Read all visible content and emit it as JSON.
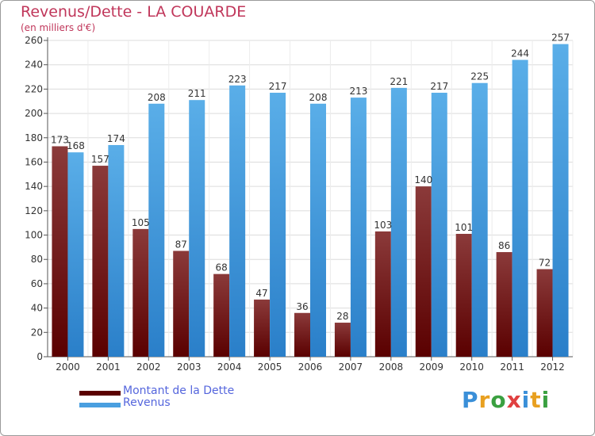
{
  "title": "Revenus/Dette - LA COUARDE",
  "subtitle": "(en milliers d'€)",
  "legend": {
    "dette": "Montant de la Dette",
    "revenus": "Revenus"
  },
  "logo": "Proxiti",
  "colors": {
    "dette_top": "#8b3a3a",
    "dette_bottom": "#5a0000",
    "revenus_top": "#5aaee8",
    "revenus_bottom": "#2a7fc9",
    "title": "#c0365a",
    "legend_text": "#5566dd"
  },
  "chart_data": {
    "type": "bar",
    "title": "Revenus/Dette - LA COUARDE",
    "ylabel": "(en milliers d'€)",
    "xlabel": "",
    "categories": [
      "2000",
      "2001",
      "2002",
      "2003",
      "2004",
      "2005",
      "2006",
      "2007",
      "2008",
      "2009",
      "2010",
      "2011",
      "2012"
    ],
    "series": [
      {
        "name": "Montant de la Dette",
        "values": [
          173,
          157,
          105,
          87,
          68,
          47,
          36,
          28,
          103,
          140,
          101,
          86,
          72
        ]
      },
      {
        "name": "Revenus",
        "values": [
          168,
          174,
          208,
          211,
          223,
          217,
          208,
          213,
          221,
          217,
          225,
          244,
          257
        ]
      }
    ],
    "ylim": [
      0,
      260
    ],
    "yticks": [
      0,
      20,
      40,
      60,
      80,
      100,
      120,
      140,
      160,
      180,
      200,
      220,
      240,
      260
    ],
    "grid": true,
    "legend_position": "bottom-left"
  }
}
